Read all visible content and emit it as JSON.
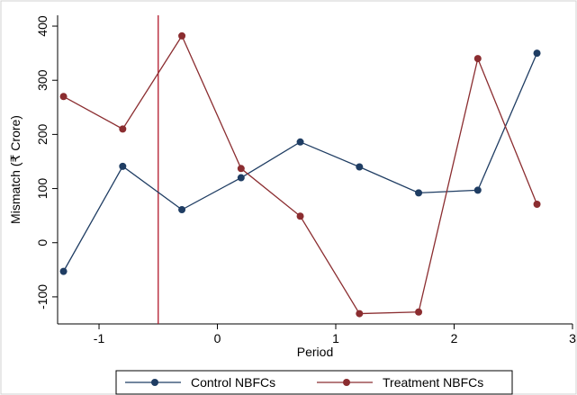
{
  "chart_data": {
    "type": "line",
    "xlabel": "Period",
    "ylabel": "Mismatch (₹ Crore)",
    "xlim": [
      -1.35,
      3.0
    ],
    "ylim": [
      -150,
      420
    ],
    "x_ticks": [
      -1,
      0,
      1,
      2,
      3
    ],
    "x_tick_labels": [
      "-1",
      "0",
      "1",
      "2",
      "3"
    ],
    "y_ticks": [
      -100,
      0,
      100,
      200,
      300,
      400
    ],
    "y_tick_labels": [
      "-100",
      "0",
      "100",
      "200",
      "300",
      "400"
    ],
    "grid": "none",
    "legend_position": "bottom",
    "vline": {
      "x": -0.5,
      "color": "#b2182b"
    },
    "series": [
      {
        "name": "Control NBFCs",
        "color": "#1f3d63",
        "x": [
          -1.3,
          -0.8,
          -0.3,
          0.2,
          0.7,
          1.2,
          1.7,
          2.2,
          2.7
        ],
        "y": [
          -53,
          141,
          61,
          120,
          186,
          140,
          92,
          97,
          350
        ]
      },
      {
        "name": "Treatment NBFCs",
        "color": "#8b2d30",
        "x": [
          -1.3,
          -0.8,
          -0.3,
          0.2,
          0.7,
          1.2,
          1.7,
          2.2,
          2.7
        ],
        "y": [
          270,
          210,
          382,
          137,
          49,
          -131,
          -128,
          340,
          71
        ]
      }
    ]
  }
}
